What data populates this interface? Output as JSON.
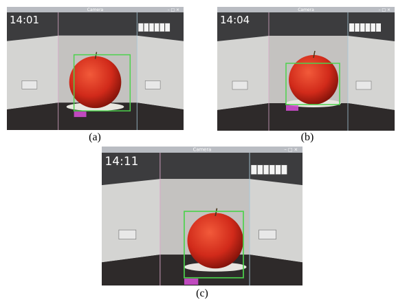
{
  "panels": [
    {
      "window_title": "Camera",
      "timestamp": "14:01",
      "caption": "(a)"
    },
    {
      "window_title": "Camera",
      "timestamp": "14:04",
      "caption": "(b)"
    },
    {
      "window_title": "Camera",
      "timestamp": "14:11",
      "caption": "(c)"
    }
  ]
}
